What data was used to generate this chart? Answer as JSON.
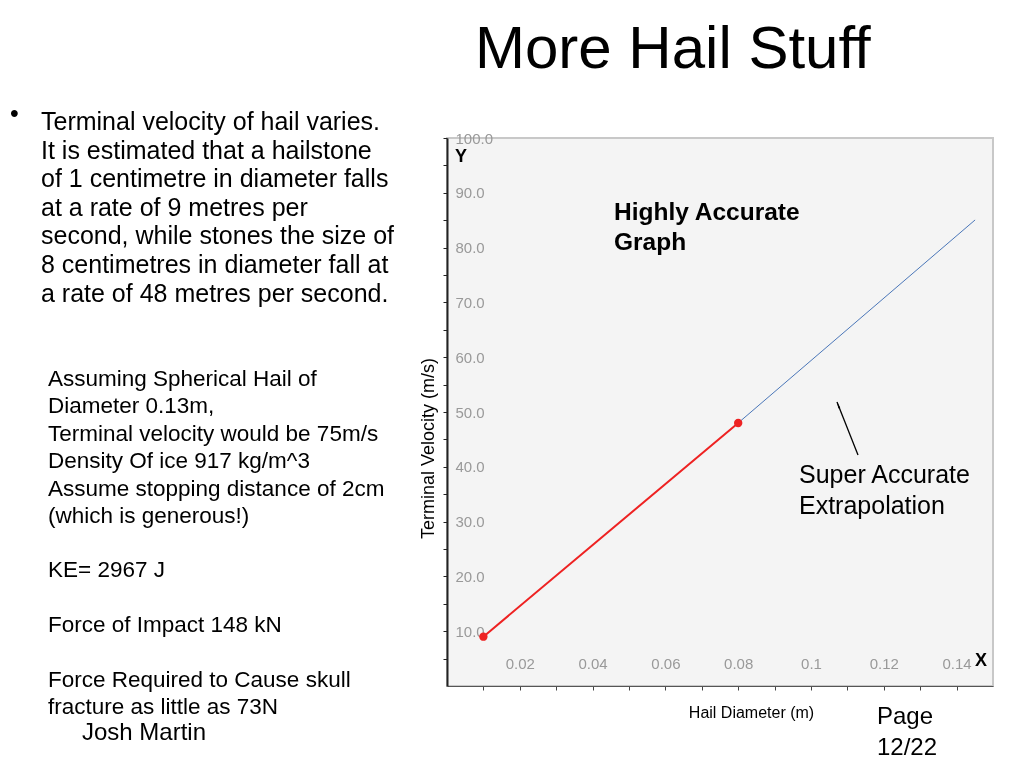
{
  "chart_data": {
    "type": "line",
    "title": "More Hail Stuff",
    "xlabel": "Hail Diameter (m)",
    "ylabel": "Terminal Velocity (m/s)",
    "xlim": [
      0,
      0.15
    ],
    "ylim": [
      0,
      100
    ],
    "xticks": [
      {
        "value": 0.01,
        "label": null
      },
      0.02,
      {
        "value": 0.03,
        "label": null
      },
      0.04,
      {
        "value": 0.05,
        "label": null
      },
      0.06,
      {
        "value": 0.07,
        "label": null
      },
      0.08,
      {
        "value": 0.09,
        "label": null
      },
      0.1,
      {
        "value": 0.11,
        "label": null
      },
      0.12,
      {
        "value": 0.13,
        "label": null
      },
      0.14
    ],
    "yticks": [
      {
        "value": 5,
        "label": null
      },
      {
        "value": 10,
        "label": "10.0"
      },
      {
        "value": 15,
        "label": null
      },
      {
        "value": 20,
        "label": "20.0"
      },
      {
        "value": 25,
        "label": null
      },
      {
        "value": 30,
        "label": "30.0"
      },
      {
        "value": 35,
        "label": null
      },
      {
        "value": 40,
        "label": "40.0"
      },
      {
        "value": 45,
        "label": null
      },
      {
        "value": 50,
        "label": "50.0"
      },
      {
        "value": 55,
        "label": null
      },
      {
        "value": 60,
        "label": "60.0"
      },
      {
        "value": 65,
        "label": null
      },
      {
        "value": 70,
        "label": "70.0"
      },
      {
        "value": 75,
        "label": null
      },
      {
        "value": 80,
        "label": "80.0"
      },
      {
        "value": 85,
        "label": null
      },
      {
        "value": 90,
        "label": "90.0"
      },
      {
        "value": 95,
        "label": null
      },
      {
        "value": 100,
        "label": "100.0"
      }
    ],
    "series": [
      {
        "color": "#ee2222",
        "x": [
          0.01,
          0.08
        ],
        "values": [
          9,
          48
        ],
        "marker": "circle",
        "line_style": "solid"
      },
      {
        "color": "#4a76b8",
        "x": [
          0.08,
          0.145
        ],
        "values": [
          48,
          85
        ],
        "marker": "none",
        "line_style": "solid"
      }
    ],
    "annotations": [
      "Highly Accurate\nGraph",
      "Super Accurate\nExtrapolation",
      "Y",
      "X",
      "•",
      "Terminal velocity of hail varies.\nIt is estimated that a hailstone\nof 1 centimetre in diameter falls\nat a rate of 9 metres per\nsecond, while stones the size of\n8 centimetres in diameter fall at\na rate of 48 metres per second.",
      "Assuming Spherical Hail of\nDiameter 0.13m,\nTerminal velocity would be 75m/s\nDensity  Of ice 917 kg/m^3\nAssume stopping distance of 2cm\n(which is generous!)",
      "KE= 2967 J",
      "Force of Impact 148 kN",
      "Force Required to Cause skull\nfracture as little as 73N",
      "Josh Martin",
      "Page\n12/22"
    ]
  }
}
